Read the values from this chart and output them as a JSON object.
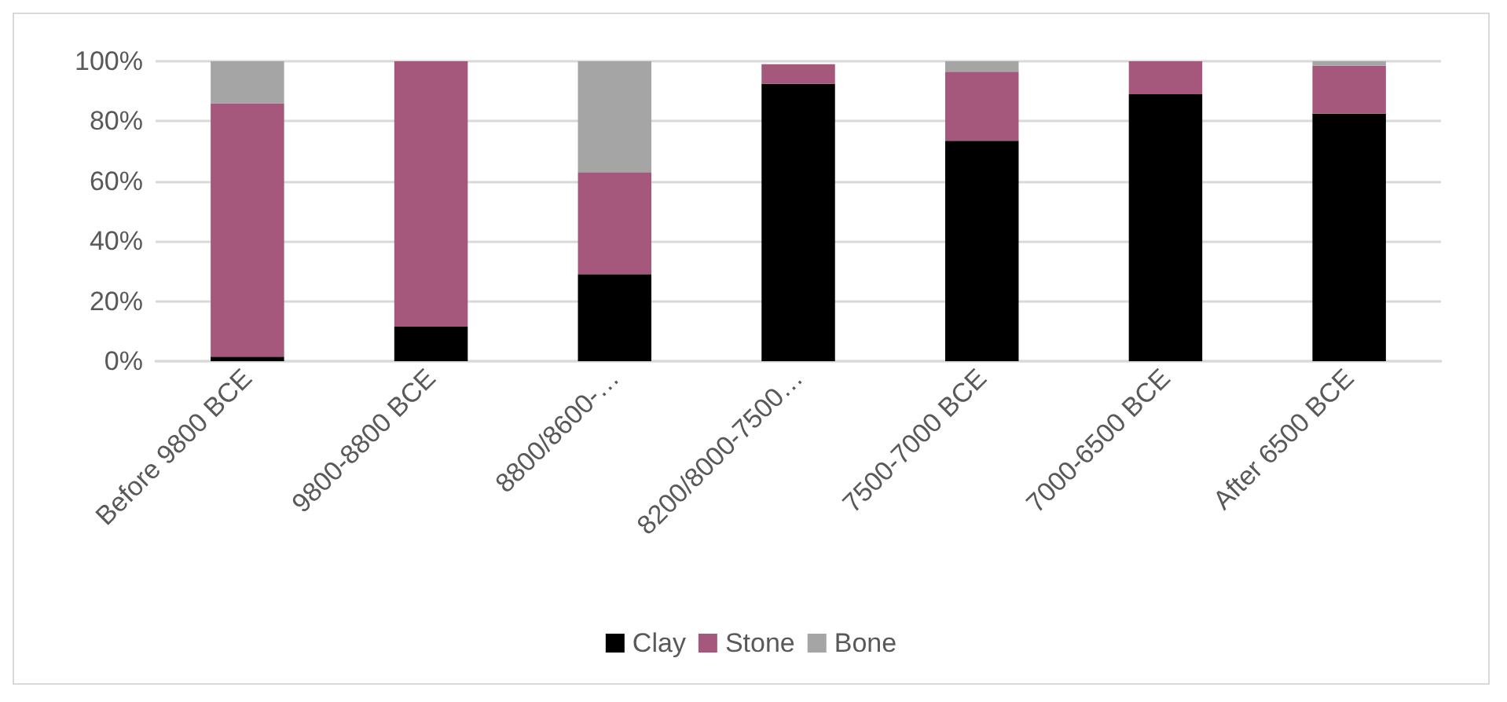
{
  "chart_data": {
    "type": "bar",
    "stacked": true,
    "categories": [
      "Before 9800 BCE",
      "9800-8800 BCE",
      "8800/8600-…",
      "8200/8000-7500…",
      "7500-7000 BCE",
      "7000-6500 BCE",
      "After 6500 BCE"
    ],
    "series": [
      {
        "name": "Clay",
        "color": "#000000",
        "values": [
          1.5,
          11.5,
          29,
          92.5,
          73.5,
          89,
          82.5
        ]
      },
      {
        "name": "Stone",
        "color": "#a5587c",
        "values": [
          84.5,
          88.5,
          34,
          6.5,
          23,
          11,
          16
        ]
      },
      {
        "name": "Bone",
        "color": "#a5a5a5",
        "values": [
          14,
          0,
          37,
          null,
          3.5,
          0,
          1.5
        ]
      }
    ],
    "ylim": [
      0,
      100
    ],
    "yticks": [
      {
        "value": 0,
        "label": "0%"
      },
      {
        "value": 20,
        "label": "20%"
      },
      {
        "value": 40,
        "label": "40%"
      },
      {
        "value": 60,
        "label": "60%"
      },
      {
        "value": 80,
        "label": "80%"
      },
      {
        "value": 100,
        "label": "100%"
      }
    ],
    "grid": "y",
    "legend": "bottom"
  }
}
